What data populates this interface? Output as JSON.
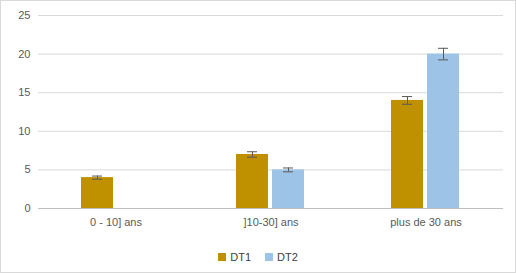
{
  "chart_data": {
    "type": "bar",
    "categories": [
      "0 - 10] ans",
      "]10-30] ans",
      "plus de 30 ans"
    ],
    "series": [
      {
        "name": "DT1",
        "color": "#bf9000",
        "values": [
          4,
          7,
          14
        ],
        "errors": [
          0.2,
          0.35,
          0.5
        ]
      },
      {
        "name": "DT2",
        "color": "#9dc3e6",
        "values": [
          0,
          5,
          20
        ],
        "errors": [
          0,
          0.25,
          0.75
        ]
      }
    ],
    "ylim": [
      0,
      25
    ],
    "yticks": [
      0,
      5,
      10,
      15,
      20,
      25
    ],
    "grid": true,
    "legend": "bottom"
  }
}
